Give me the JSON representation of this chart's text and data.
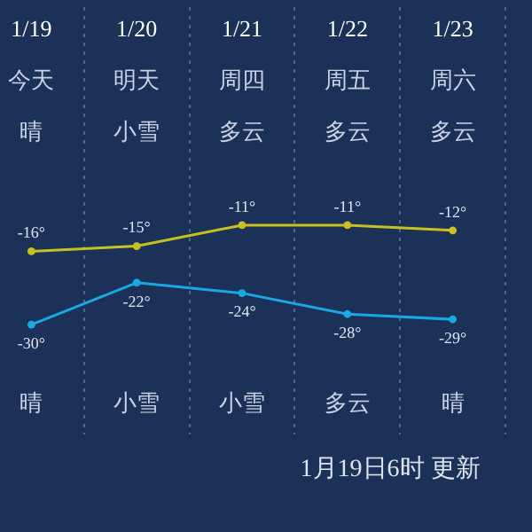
{
  "chart_data": {
    "type": "line",
    "categories": [
      "1/19",
      "1/20",
      "1/21",
      "1/22",
      "1/23"
    ],
    "series": [
      {
        "color": "#c8c020",
        "values": [
          -16,
          -15,
          -11,
          -11,
          -12
        ],
        "value_labels": [
          "-16°",
          "-15°",
          "-11°",
          "-11°",
          "-12°"
        ]
      },
      {
        "color": "#1aa8e0",
        "values": [
          -30,
          -22,
          -24,
          -28,
          -29
        ],
        "value_labels": [
          "-30°",
          "-22°",
          "-24°",
          "-28°",
          "-29°"
        ]
      }
    ],
    "marker": "circle",
    "grid": "x",
    "legend": false,
    "annotations": [
      "今天",
      "明天",
      "周四",
      "周五",
      "周六",
      "晴",
      "小雪",
      "多云",
      "多云",
      "多云",
      "晴",
      "小雪",
      "小雪",
      "多云",
      "晴",
      "1月19日6时 更新"
    ]
  }
}
